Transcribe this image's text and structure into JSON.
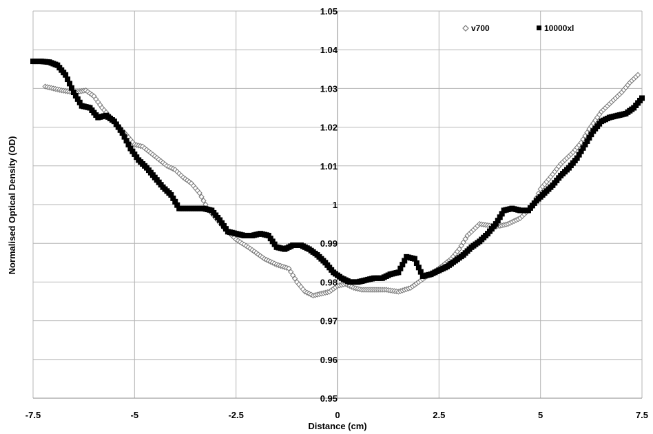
{
  "chart_data": {
    "type": "scatter",
    "title": "",
    "xlabel": "Distance (cm)",
    "ylabel": "Normalised Optical Density  (OD)",
    "xlim": [
      -7.5,
      7.5
    ],
    "ylim": [
      0.95,
      1.05
    ],
    "xticks": [
      "-7.5",
      "-5",
      "-2.5",
      "0",
      "2.5",
      "5",
      "7.5"
    ],
    "yticks": [
      "0.95",
      "0.96",
      "0.97",
      "0.98",
      "0.99",
      "1",
      "1.01",
      "1.02",
      "1.03",
      "1.04",
      "1.05"
    ],
    "grid": true,
    "legend_position": "top-right",
    "series": [
      {
        "name": "v700",
        "marker": "open-diamond",
        "color": "#777777",
        "x": [
          -7.2,
          -7.0,
          -6.8,
          -6.5,
          -6.2,
          -6.0,
          -5.8,
          -5.5,
          -5.2,
          -5.0,
          -4.8,
          -4.5,
          -4.2,
          -4.0,
          -3.8,
          -3.6,
          -3.4,
          -3.2,
          -3.0,
          -2.8,
          -2.5,
          -2.2,
          -2.0,
          -1.8,
          -1.5,
          -1.2,
          -1.0,
          -0.8,
          -0.6,
          -0.4,
          -0.2,
          0.0,
          0.2,
          0.4,
          0.6,
          0.8,
          1.0,
          1.2,
          1.5,
          1.8,
          2.0,
          2.2,
          2.5,
          2.8,
          3.0,
          3.2,
          3.5,
          3.8,
          4.0,
          4.2,
          4.5,
          4.8,
          5.0,
          5.2,
          5.5,
          5.8,
          6.0,
          6.2,
          6.5,
          6.8,
          7.0,
          7.2,
          7.4
        ],
        "y": [
          1.0305,
          1.03,
          1.0295,
          1.029,
          1.0295,
          1.028,
          1.025,
          1.0215,
          1.018,
          1.0155,
          1.015,
          1.0125,
          1.01,
          1.009,
          1.007,
          1.0055,
          1.003,
          0.999,
          0.9965,
          0.994,
          0.991,
          0.989,
          0.9875,
          0.986,
          0.9845,
          0.9835,
          0.98,
          0.9775,
          0.9765,
          0.977,
          0.9775,
          0.979,
          0.9795,
          0.9785,
          0.978,
          0.978,
          0.978,
          0.978,
          0.9775,
          0.9785,
          0.98,
          0.9815,
          0.9835,
          0.986,
          0.9885,
          0.992,
          0.995,
          0.9945,
          0.9945,
          0.995,
          0.9965,
          0.9995,
          1.004,
          1.0065,
          1.0105,
          1.0135,
          1.016,
          1.0195,
          1.024,
          1.027,
          1.029,
          1.0315,
          1.0335
        ]
      },
      {
        "name": "10000xl",
        "marker": "filled-square",
        "color": "#000000",
        "x": [
          -7.5,
          -7.3,
          -7.1,
          -6.9,
          -6.7,
          -6.5,
          -6.3,
          -6.1,
          -5.9,
          -5.7,
          -5.5,
          -5.3,
          -5.1,
          -4.9,
          -4.7,
          -4.5,
          -4.3,
          -4.1,
          -3.9,
          -3.7,
          -3.5,
          -3.3,
          -3.1,
          -2.9,
          -2.7,
          -2.5,
          -2.3,
          -2.1,
          -1.9,
          -1.7,
          -1.5,
          -1.3,
          -1.1,
          -0.9,
          -0.7,
          -0.5,
          -0.3,
          -0.1,
          0.1,
          0.3,
          0.5,
          0.7,
          0.9,
          1.1,
          1.3,
          1.5,
          1.7,
          1.9,
          2.1,
          2.3,
          2.5,
          2.7,
          2.9,
          3.1,
          3.3,
          3.5,
          3.7,
          3.9,
          4.1,
          4.3,
          4.5,
          4.7,
          4.9,
          5.1,
          5.3,
          5.5,
          5.7,
          5.9,
          6.1,
          6.3,
          6.5,
          6.7,
          6.9,
          7.1,
          7.3,
          7.5
        ],
        "y": [
          1.037,
          1.037,
          1.0368,
          1.036,
          1.0335,
          1.029,
          1.0255,
          1.025,
          1.0225,
          1.023,
          1.0215,
          1.0185,
          1.0145,
          1.0115,
          1.0095,
          1.007,
          1.0045,
          1.0025,
          0.999,
          0.999,
          0.999,
          0.999,
          0.9985,
          0.996,
          0.993,
          0.9925,
          0.992,
          0.992,
          0.9925,
          0.992,
          0.989,
          0.9885,
          0.9895,
          0.9895,
          0.9885,
          0.987,
          0.985,
          0.9825,
          0.981,
          0.98,
          0.98,
          0.9805,
          0.981,
          0.981,
          0.982,
          0.9825,
          0.9865,
          0.986,
          0.9815,
          0.982,
          0.983,
          0.984,
          0.9855,
          0.987,
          0.989,
          0.9905,
          0.9925,
          0.995,
          0.9985,
          0.999,
          0.9985,
          0.9985,
          1.001,
          1.003,
          1.005,
          1.0075,
          1.0095,
          1.012,
          1.0155,
          1.019,
          1.0215,
          1.0225,
          1.023,
          1.0235,
          1.025,
          1.0275
        ]
      }
    ]
  }
}
